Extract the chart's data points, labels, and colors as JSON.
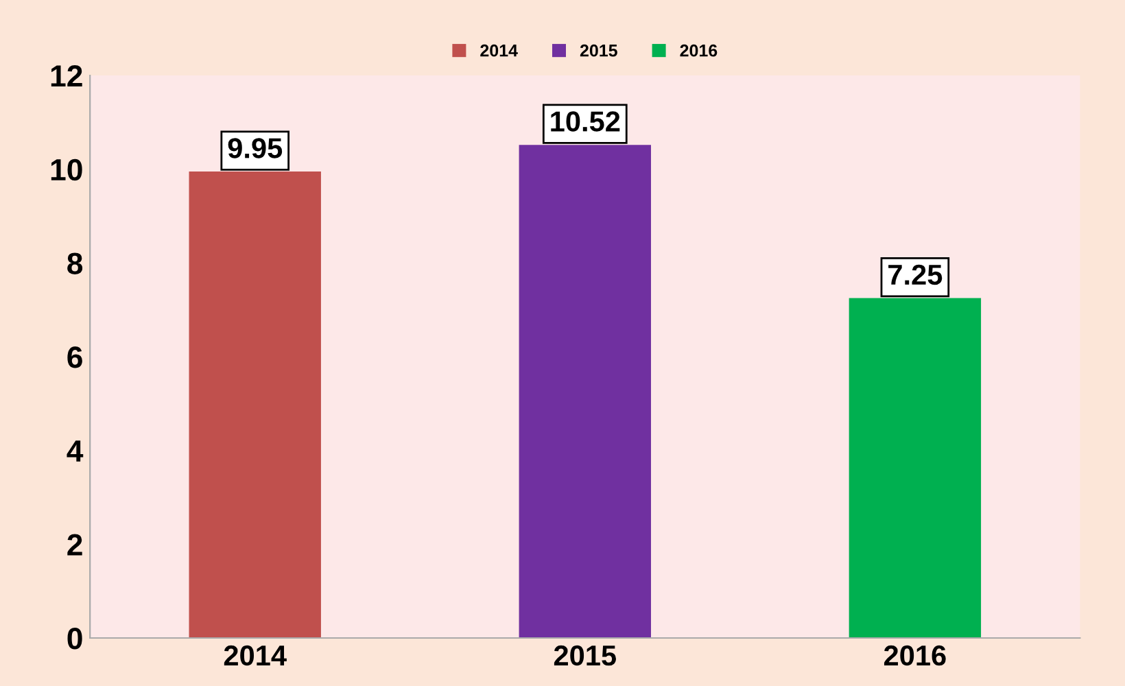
{
  "chart_data": {
    "type": "bar",
    "categories": [
      "2014",
      "2015",
      "2016"
    ],
    "series": [
      {
        "name": "2014",
        "color": "#c0504d",
        "values": [
          9.95,
          null,
          null
        ]
      },
      {
        "name": "2015",
        "color": "#7030a0",
        "values": [
          null,
          10.52,
          null
        ]
      },
      {
        "name": "2016",
        "color": "#00b050",
        "values": [
          null,
          null,
          7.25
        ]
      }
    ],
    "ylim": [
      0,
      12
    ],
    "yticks": [
      0,
      2,
      4,
      6,
      8,
      10,
      12
    ],
    "grid": false,
    "legend": "top",
    "data_labels": true
  }
}
